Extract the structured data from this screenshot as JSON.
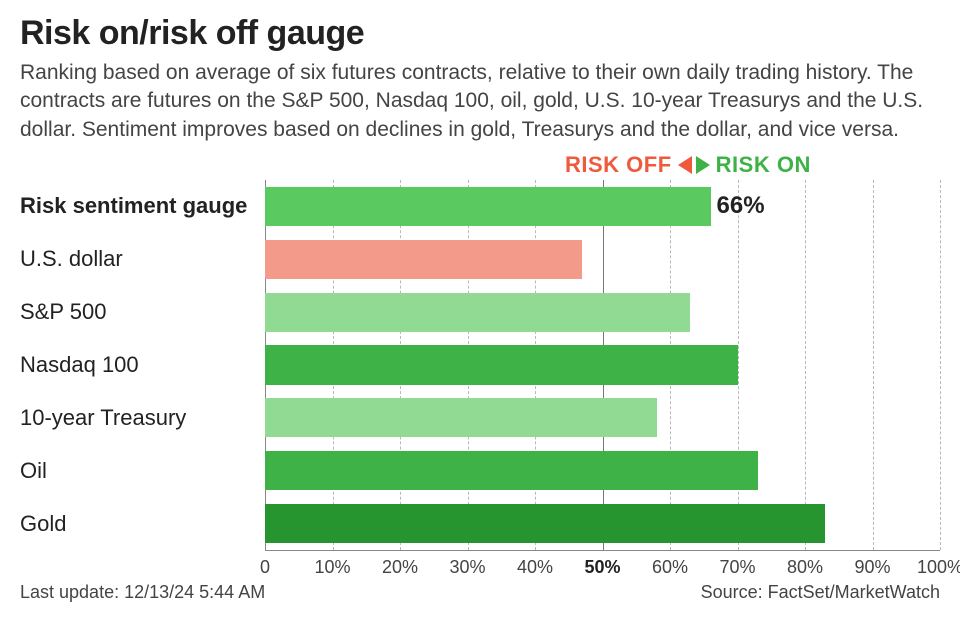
{
  "title": "Risk on/risk off gauge",
  "subtitle": "Ranking based on average of six futures contracts, relative to their own daily trading history. The contracts are futures on the S&P 500, Nasdaq 100, oil, gold, U.S. 10-year Treasurys and the U.S. dollar. Sentiment improves based on declines in gold, Treasurys and the dollar, and vice versa.",
  "legend": {
    "off_label": "RISK OFF",
    "on_label": "RISK ON",
    "off_color": "#ef5a3d",
    "on_color": "#3fb247"
  },
  "chart": {
    "type": "bar",
    "orientation": "horizontal",
    "xlim": [
      0,
      100
    ],
    "ticks": [
      0,
      10,
      20,
      30,
      40,
      50,
      60,
      70,
      80,
      90,
      100
    ],
    "tick_labels": [
      "0",
      "10%",
      "20%",
      "30%",
      "40%",
      "50%",
      "60%",
      "70%",
      "80%",
      "90%",
      "100%"
    ],
    "midline": 50,
    "grid_dash_color": "#b8b8b8",
    "midline_color": "#777777",
    "baseline_color": "#888888",
    "bar_height_pct": 74,
    "background_color": "#ffffff",
    "label_fontsize": 22,
    "tick_fontsize": 18,
    "rows": [
      {
        "label": "Risk sentiment gauge",
        "value": 66,
        "color": "#59c960",
        "bold": true,
        "show_value": true,
        "value_text": "66%"
      },
      {
        "label": "U.S. dollar",
        "value": 47,
        "color": "#f39a8a",
        "bold": false,
        "show_value": false
      },
      {
        "label": "S&P 500",
        "value": 63,
        "color": "#90da94",
        "bold": false,
        "show_value": false
      },
      {
        "label": "Nasdaq 100",
        "value": 70,
        "color": "#3fb247",
        "bold": false,
        "show_value": false
      },
      {
        "label": "10-year Treasury",
        "value": 58,
        "color": "#90da94",
        "bold": false,
        "show_value": false
      },
      {
        "label": "Oil",
        "value": 73,
        "color": "#3fb247",
        "bold": false,
        "show_value": false
      },
      {
        "label": "Gold",
        "value": 83,
        "color": "#27952f",
        "bold": false,
        "show_value": false
      }
    ]
  },
  "footer": {
    "last_update_prefix": "Last update: ",
    "last_update": "12/13/24 5:44 AM",
    "source_prefix": "Source: ",
    "source": "FactSet/MarketWatch"
  }
}
